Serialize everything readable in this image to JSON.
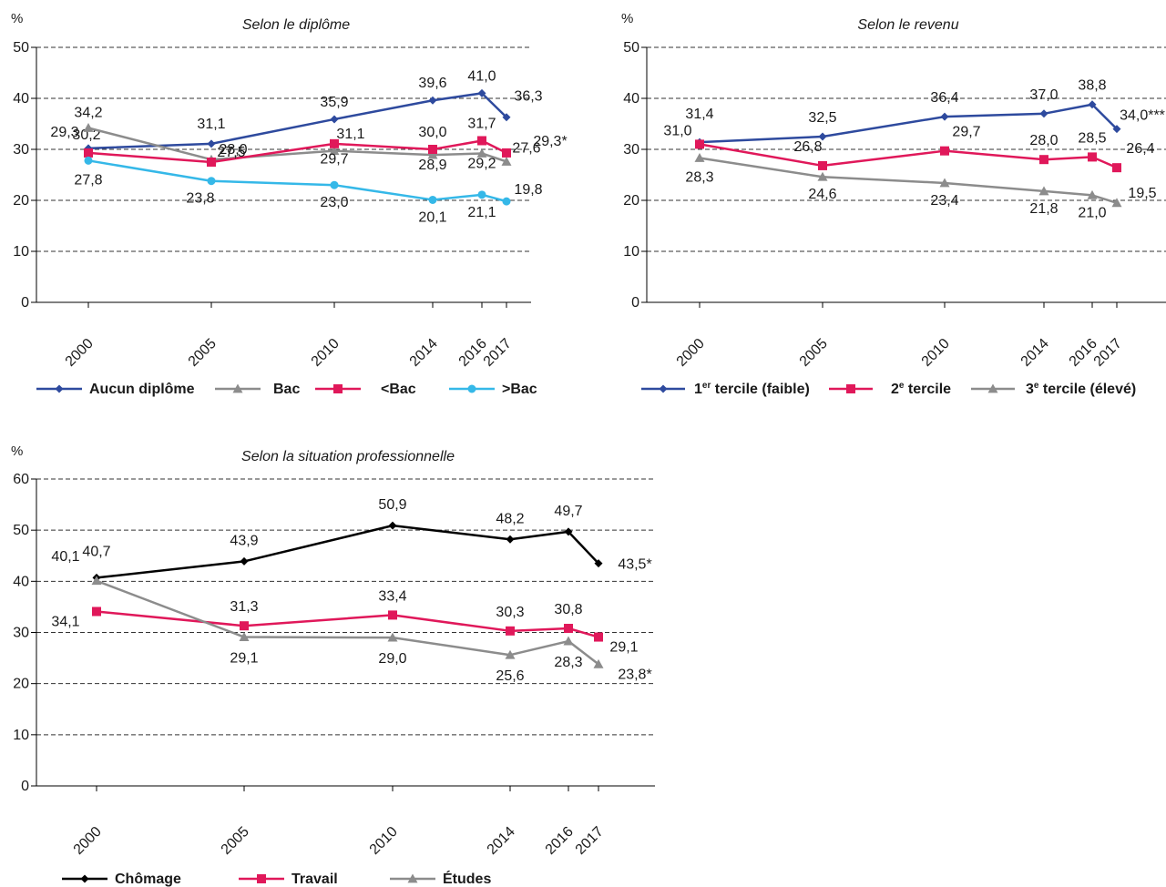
{
  "chart_data": [
    {
      "type": "line",
      "title": "Selon le diplôme",
      "ylabel": "%",
      "ylim": [
        0,
        50
      ],
      "yticks": [
        "0",
        "10",
        "20",
        "30",
        "40",
        "50"
      ],
      "grid": true,
      "x": [
        2000,
        2005,
        2010,
        2014,
        2016,
        2017
      ],
      "xticklabels": [
        "2000",
        "2005",
        "2010",
        "2014",
        "2016",
        "2017"
      ],
      "legend_position": "bottom",
      "series": [
        {
          "name": "Aucun diplôme",
          "color": "#2e4a9e",
          "marker": "diamond",
          "values": [
            30.2,
            31.1,
            35.9,
            39.6,
            41.0,
            36.3
          ],
          "labels": [
            "30,2",
            "31,1",
            "35,9",
            "39,6",
            "41,0",
            "36,3"
          ]
        },
        {
          "name": "Bac",
          "color": "#8c8c8c",
          "marker": "triangle",
          "values": [
            34.2,
            28.0,
            29.7,
            28.9,
            29.2,
            27.6
          ],
          "labels": [
            "34,2",
            "28,0",
            "29,7",
            "28,9",
            "29,2",
            "27,6"
          ]
        },
        {
          "name": "<Bac",
          "color": "#e0185a",
          "marker": "square",
          "values": [
            29.3,
            27.5,
            31.1,
            30.0,
            31.7,
            29.3
          ],
          "labels": [
            "29,3",
            "27,5",
            "31,1",
            "30,0",
            "31,7",
            "29,3*"
          ]
        },
        {
          "name": ">Bac",
          "color": "#35b8e8",
          "marker": "circle",
          "values": [
            27.8,
            23.8,
            23.0,
            20.1,
            21.1,
            19.8
          ],
          "labels": [
            "27,8",
            "23,8",
            "23,0",
            "20,1",
            "21,1",
            "19,8"
          ]
        }
      ]
    },
    {
      "type": "line",
      "title": "Selon le revenu",
      "ylabel": "%",
      "ylim": [
        0,
        50
      ],
      "yticks": [
        "0",
        "10",
        "20",
        "30",
        "40",
        "50"
      ],
      "grid": true,
      "x": [
        2000,
        2005,
        2010,
        2014,
        2016,
        2017
      ],
      "xticklabels": [
        "2000",
        "2005",
        "2010",
        "2014",
        "2016",
        "2017"
      ],
      "legend_position": "bottom",
      "series": [
        {
          "name": "1er tercile (faible)",
          "legend_parts": [
            "1",
            "er",
            " tercile (faible)"
          ],
          "color": "#2e4a9e",
          "marker": "diamond",
          "values": [
            31.4,
            32.5,
            36.4,
            37.0,
            38.8,
            34.0
          ],
          "labels": [
            "31,4",
            "32,5",
            "36,4",
            "37,0",
            "38,8",
            "34,0***"
          ]
        },
        {
          "name": "2e tercile",
          "legend_parts": [
            "2",
            "e",
            " tercile"
          ],
          "color": "#e0185a",
          "marker": "square",
          "values": [
            31.0,
            26.8,
            29.7,
            28.0,
            28.5,
            26.4
          ],
          "labels": [
            "31,0",
            "26,8",
            "29,7",
            "28,0",
            "28,5",
            "26,4"
          ]
        },
        {
          "name": "3e tercile (élevé)",
          "legend_parts": [
            "3",
            "e",
            " tercile (élevé)"
          ],
          "color": "#8c8c8c",
          "marker": "triangle",
          "values": [
            28.3,
            24.6,
            23.4,
            21.8,
            21.0,
            19.5
          ],
          "labels": [
            "28,3",
            "24,6",
            "23,4",
            "21,8",
            "21,0",
            "19,5"
          ]
        }
      ]
    },
    {
      "type": "line",
      "title": "Selon la situation professionnelle",
      "ylabel": "%",
      "ylim": [
        0,
        60
      ],
      "yticks": [
        "0",
        "10",
        "20",
        "30",
        "40",
        "50",
        "60"
      ],
      "grid": true,
      "x": [
        2000,
        2005,
        2010,
        2014,
        2016,
        2017
      ],
      "xticklabels": [
        "2000",
        "2005",
        "2010",
        "2014",
        "2016",
        "2017"
      ],
      "legend_position": "bottom",
      "series": [
        {
          "name": "Chômage",
          "color": "#000000",
          "marker": "diamond",
          "values": [
            40.7,
            43.9,
            50.9,
            48.2,
            49.7,
            43.5
          ],
          "labels": [
            "40,7",
            "43,9",
            "50,9",
            "48,2",
            "49,7",
            "43,5*"
          ]
        },
        {
          "name": "Travail",
          "color": "#e0185a",
          "marker": "square",
          "values": [
            34.1,
            31.3,
            33.4,
            30.3,
            30.8,
            29.1
          ],
          "labels": [
            "34,1",
            "31,3",
            "33,4",
            "30,3",
            "30,8",
            "29,1"
          ]
        },
        {
          "name": "Études",
          "color": "#8c8c8c",
          "marker": "triangle",
          "values": [
            40.1,
            29.1,
            29.0,
            25.6,
            28.3,
            23.8
          ],
          "labels": [
            "40,1",
            "29,1",
            "29,0",
            "25,6",
            "28,3",
            "23,8*"
          ]
        }
      ]
    }
  ]
}
